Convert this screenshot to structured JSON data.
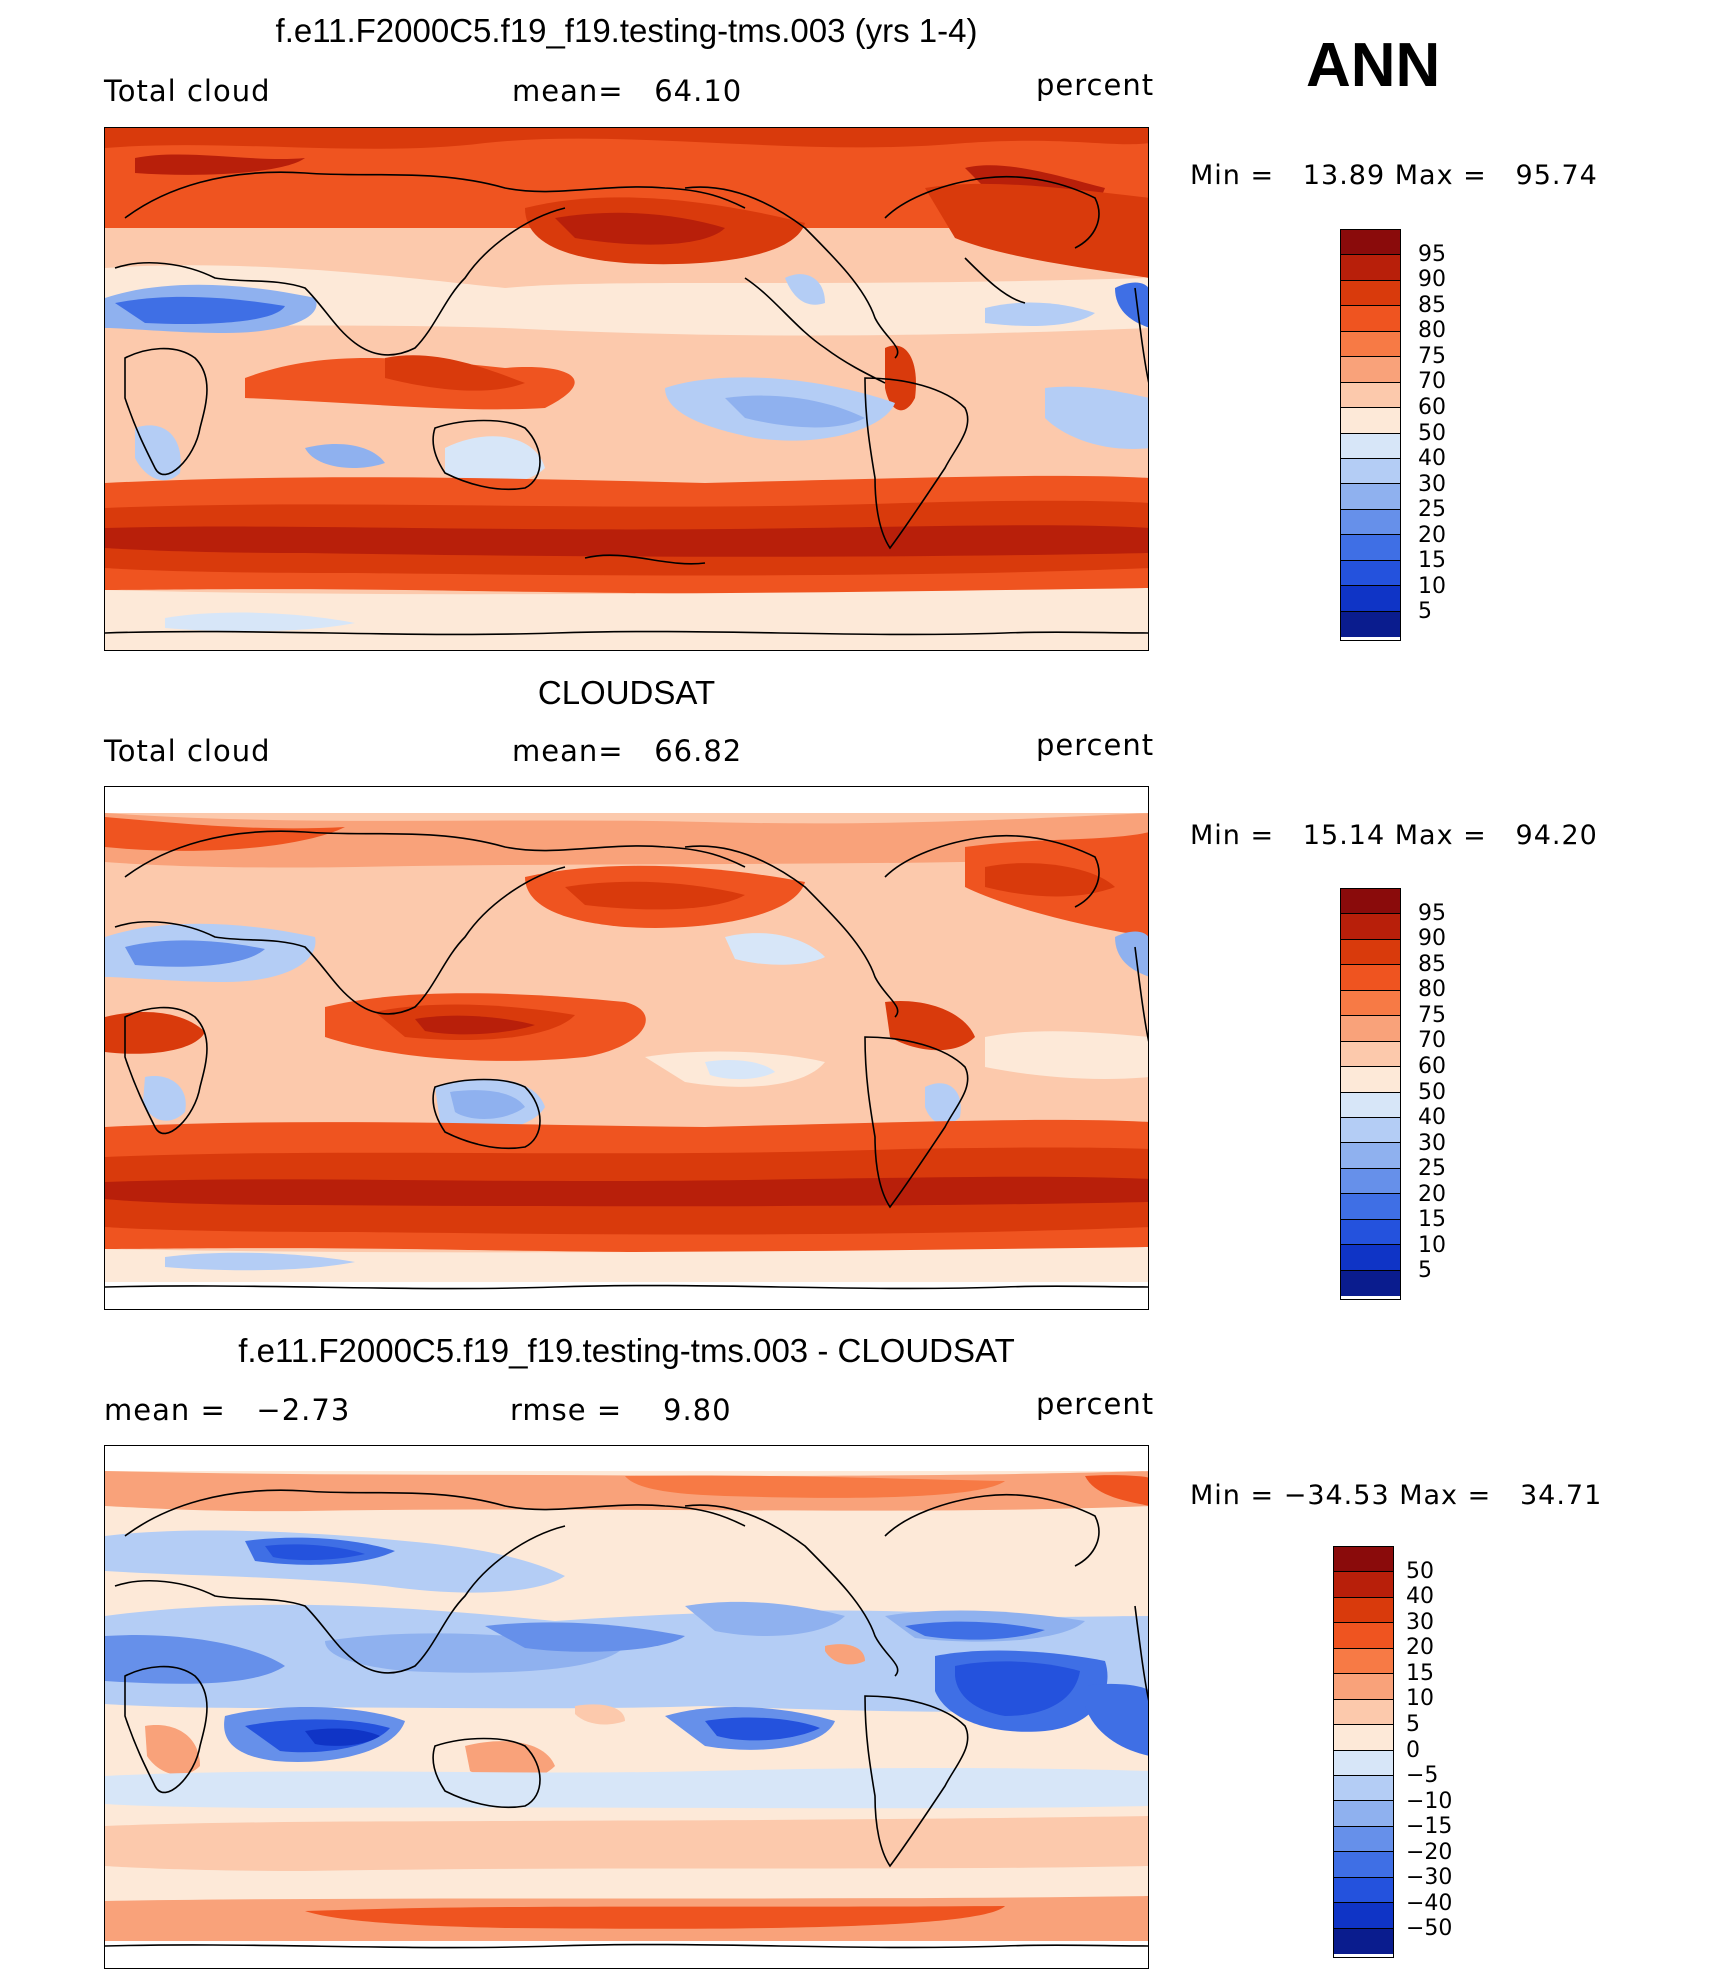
{
  "season": "ANN",
  "panels": [
    {
      "title": "f.e11.F2000C5.f19_f19.testing-tms.003 (yrs 1-4)",
      "left_label": "Total cloud",
      "center_label": "mean=   64.10",
      "right_label": "percent",
      "minmax": "Min =   13.89 Max =   95.74",
      "map_type": "abs"
    },
    {
      "title": "CLOUDSAT",
      "left_label": "Total cloud",
      "center_label": "mean=   66.82",
      "right_label": "percent",
      "minmax": "Min =   15.14 Max =   94.20",
      "map_type": "abs"
    },
    {
      "title": "f.e11.F2000C5.f19_f19.testing-tms.003 - CLOUDSAT",
      "left_label": "mean =   −2.73",
      "center_label": "rmse =    9.80",
      "right_label": "percent",
      "minmax": "Min = −34.53 Max =   34.71",
      "map_type": "diff"
    }
  ],
  "colorbar_abs": {
    "labels": [
      "95",
      "90",
      "85",
      "80",
      "75",
      "70",
      "60",
      "50",
      "40",
      "30",
      "25",
      "20",
      "15",
      "10",
      "5"
    ],
    "colors": [
      "#8a0b0b",
      "#b81f0a",
      "#d93a0c",
      "#ef5420",
      "#f77a45",
      "#f9a27a",
      "#fcc9ac",
      "#fde9d8",
      "#d7e6f8",
      "#b4cdf5",
      "#8fb1ef",
      "#6690ea",
      "#3f6fe5",
      "#2452dd",
      "#0f34c6",
      "#0a1c8e"
    ]
  },
  "colorbar_diff": {
    "labels": [
      "50",
      "40",
      "30",
      "20",
      "15",
      "10",
      "5",
      "0",
      "−5",
      "−10",
      "−15",
      "−20",
      "−30",
      "−40",
      "−50"
    ],
    "colors": [
      "#8a0b0b",
      "#b81f0a",
      "#d93a0c",
      "#ef5420",
      "#f77a45",
      "#f9a27a",
      "#fcc9ac",
      "#fde9d8",
      "#d7e6f8",
      "#b4cdf5",
      "#8fb1ef",
      "#6690ea",
      "#3f6fe5",
      "#2452dd",
      "#0f34c6",
      "#0a1c8e"
    ]
  }
}
